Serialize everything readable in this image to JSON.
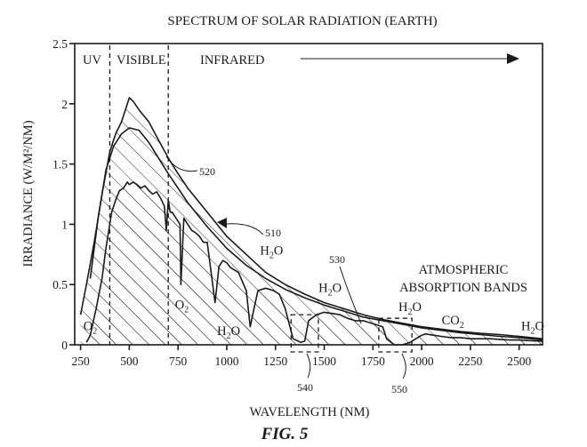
{
  "figure_label": "FIG. 5",
  "chart_data": {
    "type": "line",
    "title": "SPECTRUM OF SOLAR RADIATION (EARTH)",
    "xlabel": "WAVELENGTH (NM)",
    "ylabel": "IRRADIANCE (W/M²/NM)",
    "xlim": [
      220,
      2620
    ],
    "ylim": [
      0,
      2.5
    ],
    "x_ticks": [
      250,
      500,
      750,
      1000,
      1250,
      1500,
      1750,
      2000,
      2250,
      2500
    ],
    "y_ticks": [
      0,
      0.5,
      1,
      1.5,
      2,
      2.5
    ],
    "y_tick_labels": [
      "0",
      "0.5",
      "1",
      "1.5",
      "2",
      "2.5"
    ],
    "x_tick_labels": [
      "250",
      "500",
      "750",
      "1000",
      "1250",
      "1500",
      "1750",
      "2000",
      "2250",
      "2500"
    ],
    "region_boundaries_nm": [
      400,
      700
    ],
    "regions": {
      "uv": "UV",
      "visible": "VISIBLE",
      "infrared": "INFRARED"
    },
    "series": [
      {
        "name": "510",
        "description_label": "510",
        "x": [
          250,
          280,
          320,
          360,
          400,
          430,
          460,
          480,
          500,
          520,
          550,
          600,
          650,
          700,
          750,
          800,
          900,
          1000,
          1100,
          1200,
          1300,
          1400,
          1500,
          1600,
          1700,
          1800,
          1900,
          2000,
          2100,
          2200,
          2300,
          2400,
          2500,
          2620
        ],
        "y": [
          0.25,
          0.5,
          0.85,
          1.25,
          1.6,
          1.75,
          1.85,
          1.95,
          2.05,
          2.02,
          1.95,
          1.85,
          1.7,
          1.55,
          1.42,
          1.3,
          1.1,
          0.9,
          0.75,
          0.6,
          0.5,
          0.42,
          0.35,
          0.3,
          0.25,
          0.21,
          0.18,
          0.15,
          0.13,
          0.11,
          0.095,
          0.085,
          0.07,
          0.05
        ]
      },
      {
        "name": "520",
        "description_label": "520",
        "x": [
          300,
          340,
          380,
          420,
          460,
          500,
          550,
          600,
          650,
          700,
          750,
          800,
          900,
          1000,
          1100,
          1200,
          1300,
          1400,
          1500,
          1600,
          1700,
          1800,
          1900,
          2000,
          2100,
          2200,
          2300,
          2400,
          2500,
          2620
        ],
        "y": [
          0.55,
          1.05,
          1.45,
          1.65,
          1.75,
          1.8,
          1.78,
          1.68,
          1.55,
          1.42,
          1.3,
          1.18,
          0.98,
          0.8,
          0.66,
          0.55,
          0.46,
          0.39,
          0.33,
          0.28,
          0.23,
          0.2,
          0.17,
          0.14,
          0.12,
          0.1,
          0.085,
          0.07,
          0.06,
          0.04
        ]
      },
      {
        "name": "530",
        "description_label": "530",
        "x": [
          280,
          300,
          330,
          360,
          380,
          400,
          410,
          430,
          450,
          470,
          490,
          500,
          520,
          540,
          560,
          580,
          600,
          620,
          640,
          660,
          680,
          690,
          700,
          710,
          720,
          740,
          760,
          765,
          780,
          800,
          820,
          840,
          860,
          880,
          900,
          920,
          940,
          960,
          980,
          1000,
          1020,
          1060,
          1100,
          1120,
          1140,
          1160,
          1200,
          1240,
          1270,
          1300,
          1340,
          1380,
          1400,
          1420,
          1460,
          1500,
          1540,
          1580,
          1620,
          1660,
          1700,
          1760,
          1800,
          1820,
          1860,
          1880,
          1900,
          1940,
          1980,
          2000,
          2020,
          2060,
          2100,
          2150,
          2200,
          2250,
          2300,
          2350,
          2400,
          2450,
          2500,
          2550,
          2620
        ],
        "y": [
          0.02,
          0.08,
          0.3,
          0.55,
          0.8,
          1.0,
          1.1,
          1.2,
          1.28,
          1.3,
          1.35,
          1.33,
          1.35,
          1.33,
          1.3,
          1.32,
          1.28,
          1.25,
          1.27,
          1.22,
          1.15,
          0.95,
          1.2,
          1.1,
          1.1,
          1.05,
          1.0,
          0.5,
          1.05,
          1.0,
          0.95,
          0.93,
          0.9,
          0.85,
          0.85,
          0.6,
          0.35,
          0.65,
          0.7,
          0.68,
          0.64,
          0.6,
          0.45,
          0.15,
          0.3,
          0.45,
          0.47,
          0.45,
          0.42,
          0.3,
          0.05,
          0.02,
          0.03,
          0.2,
          0.25,
          0.27,
          0.26,
          0.25,
          0.22,
          0.2,
          0.2,
          0.17,
          0.15,
          0.05,
          0.0,
          0.0,
          0.0,
          0.02,
          0.06,
          0.08,
          0.09,
          0.08,
          0.07,
          0.06,
          0.06,
          0.05,
          0.05,
          0.05,
          0.045,
          0.04,
          0.04,
          0.035,
          0.03
        ]
      }
    ],
    "absorption_boxes": [
      {
        "label": "540",
        "x_range": [
          1330,
          1470
        ],
        "y_range": [
          0,
          0.25
        ]
      },
      {
        "label": "550",
        "x_range": [
          1780,
          1950
        ],
        "y_range": [
          0,
          0.22
        ]
      }
    ],
    "annotations": [
      {
        "text": "O2",
        "x": 300,
        "y": 0.12
      },
      {
        "text": "O2",
        "x": 770,
        "y": 0.3
      },
      {
        "text": "H2O",
        "x": 1010,
        "y": 0.08
      },
      {
        "text": "H2O",
        "x": 1230,
        "y": 0.75
      },
      {
        "text": "H2O",
        "x": 1530,
        "y": 0.44
      },
      {
        "text": "H2O",
        "x": 1940,
        "y": 0.28
      },
      {
        "text": "CO2",
        "x": 2160,
        "y": 0.17
      },
      {
        "text": "H2O",
        "x": 2570,
        "y": 0.12
      }
    ],
    "atmospheric_label_line1": "ATMOSPHERIC",
    "atmospheric_label_line2": "ABSORPTION BANDS"
  }
}
